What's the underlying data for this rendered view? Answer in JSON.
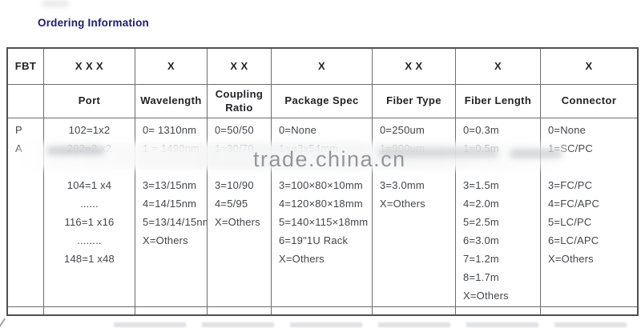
{
  "page": {
    "title": "Ordering Information",
    "watermark": "trade.china.cn"
  },
  "colors": {
    "title": "#1d1d70",
    "table_border": "#4f4f4f",
    "body_text": "#43464a",
    "watermark_text": "#8f9296"
  },
  "table": {
    "code_row": [
      "FBT",
      "X X X",
      "X",
      "X X",
      "X",
      "X X",
      "X",
      "X"
    ],
    "header_row": [
      "",
      "Port",
      "Wavelength",
      "Coupling Ratio",
      "Package Spec",
      "Fiber Type",
      "Fiber Length",
      "Connector"
    ],
    "body": {
      "fbt": {
        "lines": [
          "P",
          "A"
        ]
      },
      "port": {
        "lines": [
          "102=1x2",
          "202=2 x2",
          "",
          "104=1 x4",
          "......",
          "116=1 x16",
          "........",
          "148=1 x48"
        ]
      },
      "wavelength": {
        "lines": [
          "0= 1310nm",
          "1 = 1490nm",
          "",
          "3=13/15nm",
          "4=14/15nm",
          "5=13/14/15nm",
          "X=Others"
        ]
      },
      "coupling_ratio": {
        "lines": [
          "0=50/50",
          "1=30/70",
          "",
          "3=10/90",
          "4=5/95",
          "X=Others"
        ]
      },
      "package_spec": {
        "lines": [
          "0=None",
          "1=⌀3x54mm",
          "",
          "3=100×80×10mm",
          "4=120×80×18mm",
          "5=140×115×18mm",
          "6=19\"1U Rack",
          "X=Others"
        ]
      },
      "fiber_type": {
        "lines": [
          "0=250um",
          "1=900um",
          "",
          "3=3.0mm",
          "X=Others"
        ]
      },
      "fiber_length": {
        "lines": [
          "0=0.3m",
          "1=0.5m",
          "",
          "3=1.5m",
          "4=2.0m",
          "5=2.5m",
          "6=3.0m",
          "7=1.2m",
          "8=1.7m",
          "X=Others"
        ]
      },
      "connector": {
        "lines": [
          "0=None",
          "1=SC/PC",
          "",
          "3=FC/PC",
          "4=FC/APC",
          "5=LC/PC",
          "6=LC/APC",
          "X=Others"
        ]
      }
    }
  }
}
